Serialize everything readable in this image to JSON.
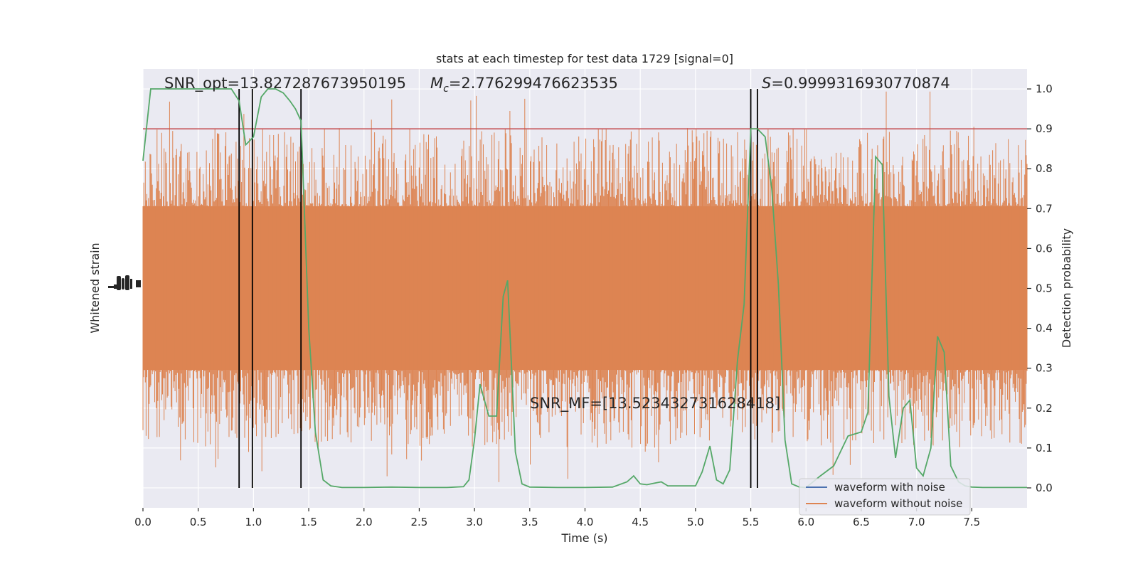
{
  "chart_data": {
    "type": "line",
    "title": "stats at each timestep for test data 1729 [signal=0]",
    "xlabel": "Time (s)",
    "ylabel_left": "Whitened strain",
    "ylabel_right": "Detection probability",
    "xlim": [
      0,
      8
    ],
    "ylim_right": [
      -0.05,
      1.05
    ],
    "x_ticks": [
      "0.0",
      "0.5",
      "1.0",
      "1.5",
      "2.0",
      "2.5",
      "3.0",
      "3.5",
      "4.0",
      "4.5",
      "5.0",
      "5.5",
      "6.0",
      "6.5",
      "7.0",
      "7.5"
    ],
    "x_tick_values": [
      0,
      0.5,
      1,
      1.5,
      2,
      2.5,
      3,
      3.5,
      4,
      4.5,
      5,
      5.5,
      6,
      6.5,
      7,
      7.5
    ],
    "y_ticks_right": [
      "0.0",
      "0.1",
      "0.2",
      "0.3",
      "0.4",
      "0.5",
      "0.6",
      "0.7",
      "0.8",
      "0.9",
      "1.0"
    ],
    "y_tick_values_right": [
      0,
      0.1,
      0.2,
      0.3,
      0.4,
      0.5,
      0.6,
      0.7,
      0.8,
      0.9,
      1.0
    ],
    "grid": true,
    "legend_position": "bottom-right",
    "annotations": {
      "snr_opt": "SNR_opt=13.827287673950195",
      "mc_symbol": "M",
      "mc_subscript": "c",
      "mc_value": "=2.776299476623535",
      "s_symbol": "S",
      "s_value": "=0.9999316930770874",
      "snr_mf": "SNR_MF=[13.523432731628418]"
    },
    "threshold": {
      "value": 0.9,
      "color": "#c44e52"
    },
    "vertical_lines": [
      0.87,
      0.99,
      1.43,
      5.5,
      5.56
    ],
    "series": [
      {
        "name": "waveform with noise",
        "color": "#4c72b0",
        "x": [],
        "y": []
      },
      {
        "name": "waveform without noise",
        "color": "#dd8452",
        "x": [
          0,
          0.07,
          0.2,
          0.4,
          0.6,
          0.8,
          0.87,
          0.93,
          1.0,
          1.07,
          1.13,
          1.2,
          1.27,
          1.33,
          1.38,
          1.43,
          1.5,
          1.56,
          1.63,
          1.7,
          1.8,
          2.0,
          2.25,
          2.5,
          2.75,
          2.9,
          2.95,
          3.0,
          3.05,
          3.13,
          3.2,
          3.26,
          3.3,
          3.37,
          3.43,
          3.5,
          3.75,
          4.0,
          4.25,
          4.38,
          4.44,
          4.5,
          4.56,
          4.63,
          4.69,
          4.75,
          5.0,
          5.06,
          5.13,
          5.19,
          5.25,
          5.31,
          5.38,
          5.44,
          5.5,
          5.56,
          5.63,
          5.69,
          5.75,
          5.81,
          5.87,
          5.94,
          6.0,
          6.13,
          6.25,
          6.38,
          6.5,
          6.56,
          6.63,
          6.69,
          6.75,
          6.81,
          6.88,
          6.94,
          7.0,
          7.06,
          7.13,
          7.19,
          7.25,
          7.31,
          7.38,
          7.44,
          7.5,
          7.6,
          7.75,
          8.0
        ],
        "y": [
          0.82,
          1.0,
          1.0,
          1.0,
          1.0,
          1.0,
          0.97,
          0.86,
          0.88,
          0.98,
          1.0,
          1.0,
          0.99,
          0.97,
          0.95,
          0.92,
          0.4,
          0.14,
          0.02,
          0.005,
          0.001,
          0.001,
          0.002,
          0.001,
          0.001,
          0.003,
          0.02,
          0.12,
          0.26,
          0.18,
          0.18,
          0.48,
          0.52,
          0.09,
          0.01,
          0.002,
          0.001,
          0.001,
          0.002,
          0.015,
          0.03,
          0.01,
          0.008,
          0.012,
          0.015,
          0.005,
          0.005,
          0.04,
          0.105,
          0.02,
          0.01,
          0.045,
          0.32,
          0.46,
          0.9,
          0.9,
          0.88,
          0.75,
          0.51,
          0.12,
          0.01,
          0.002,
          0.001,
          0.03,
          0.055,
          0.13,
          0.14,
          0.19,
          0.83,
          0.81,
          0.23,
          0.075,
          0.2,
          0.22,
          0.05,
          0.03,
          0.1,
          0.38,
          0.34,
          0.055,
          0.015,
          0.005,
          0.002,
          0.001,
          0.001,
          0.001
        ]
      }
    ]
  }
}
